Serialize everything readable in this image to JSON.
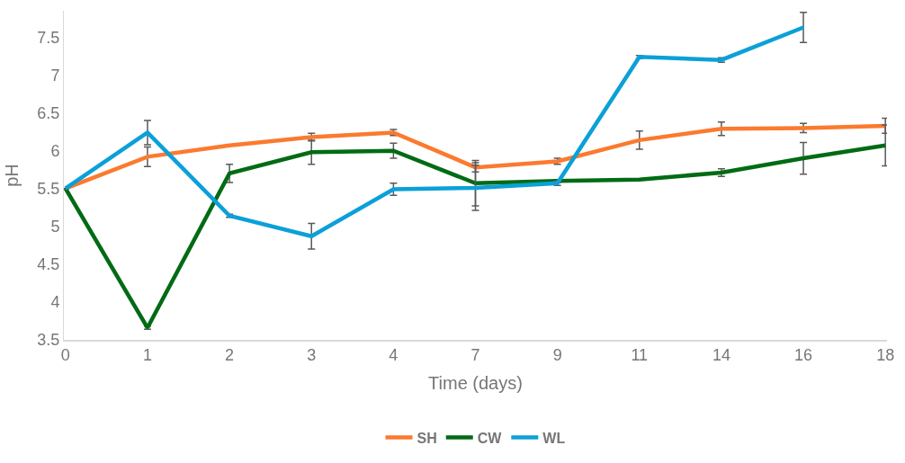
{
  "chart_data": {
    "type": "line",
    "xlabel": "Time (days)",
    "ylabel": "pH",
    "categories": [
      "0",
      "1",
      "2",
      "3",
      "4",
      "7",
      "9",
      "11",
      "14",
      "16",
      "18"
    ],
    "series": [
      {
        "name": "SH",
        "color": "#fb7a2e",
        "values": [
          5.5,
          5.92,
          6.07,
          6.18,
          6.24,
          5.78,
          5.86,
          6.14,
          6.29,
          6.3,
          6.33
        ],
        "errors": [
          null,
          0.13,
          null,
          0.05,
          0.04,
          0.06,
          0.04,
          0.12,
          0.09,
          0.06,
          0.1
        ]
      },
      {
        "name": "CW",
        "color": "#006b14",
        "values": [
          5.5,
          3.66,
          5.7,
          5.98,
          6.0,
          5.57,
          5.6,
          5.62,
          5.71,
          5.9,
          6.07
        ],
        "errors": [
          null,
          0.02,
          0.12,
          0.16,
          0.1,
          0.3,
          0.02,
          null,
          0.05,
          0.21,
          0.27
        ]
      },
      {
        "name": "WL",
        "color": "#0ba0d8",
        "values": [
          5.5,
          6.24,
          5.14,
          4.87,
          5.49,
          5.51,
          5.57,
          7.24,
          7.2,
          7.63,
          null
        ],
        "errors": [
          null,
          0.16,
          0.02,
          0.17,
          0.08,
          0.3,
          0.03,
          0.02,
          0.03,
          0.2,
          null
        ]
      }
    ],
    "ylim": [
      3.5,
      7.85
    ],
    "yticks": [
      3.5,
      4,
      4.5,
      5,
      5.5,
      6,
      6.5,
      7,
      7.5
    ],
    "grid": false,
    "legend": "bottom",
    "marker": "none",
    "line_style": "solid"
  }
}
